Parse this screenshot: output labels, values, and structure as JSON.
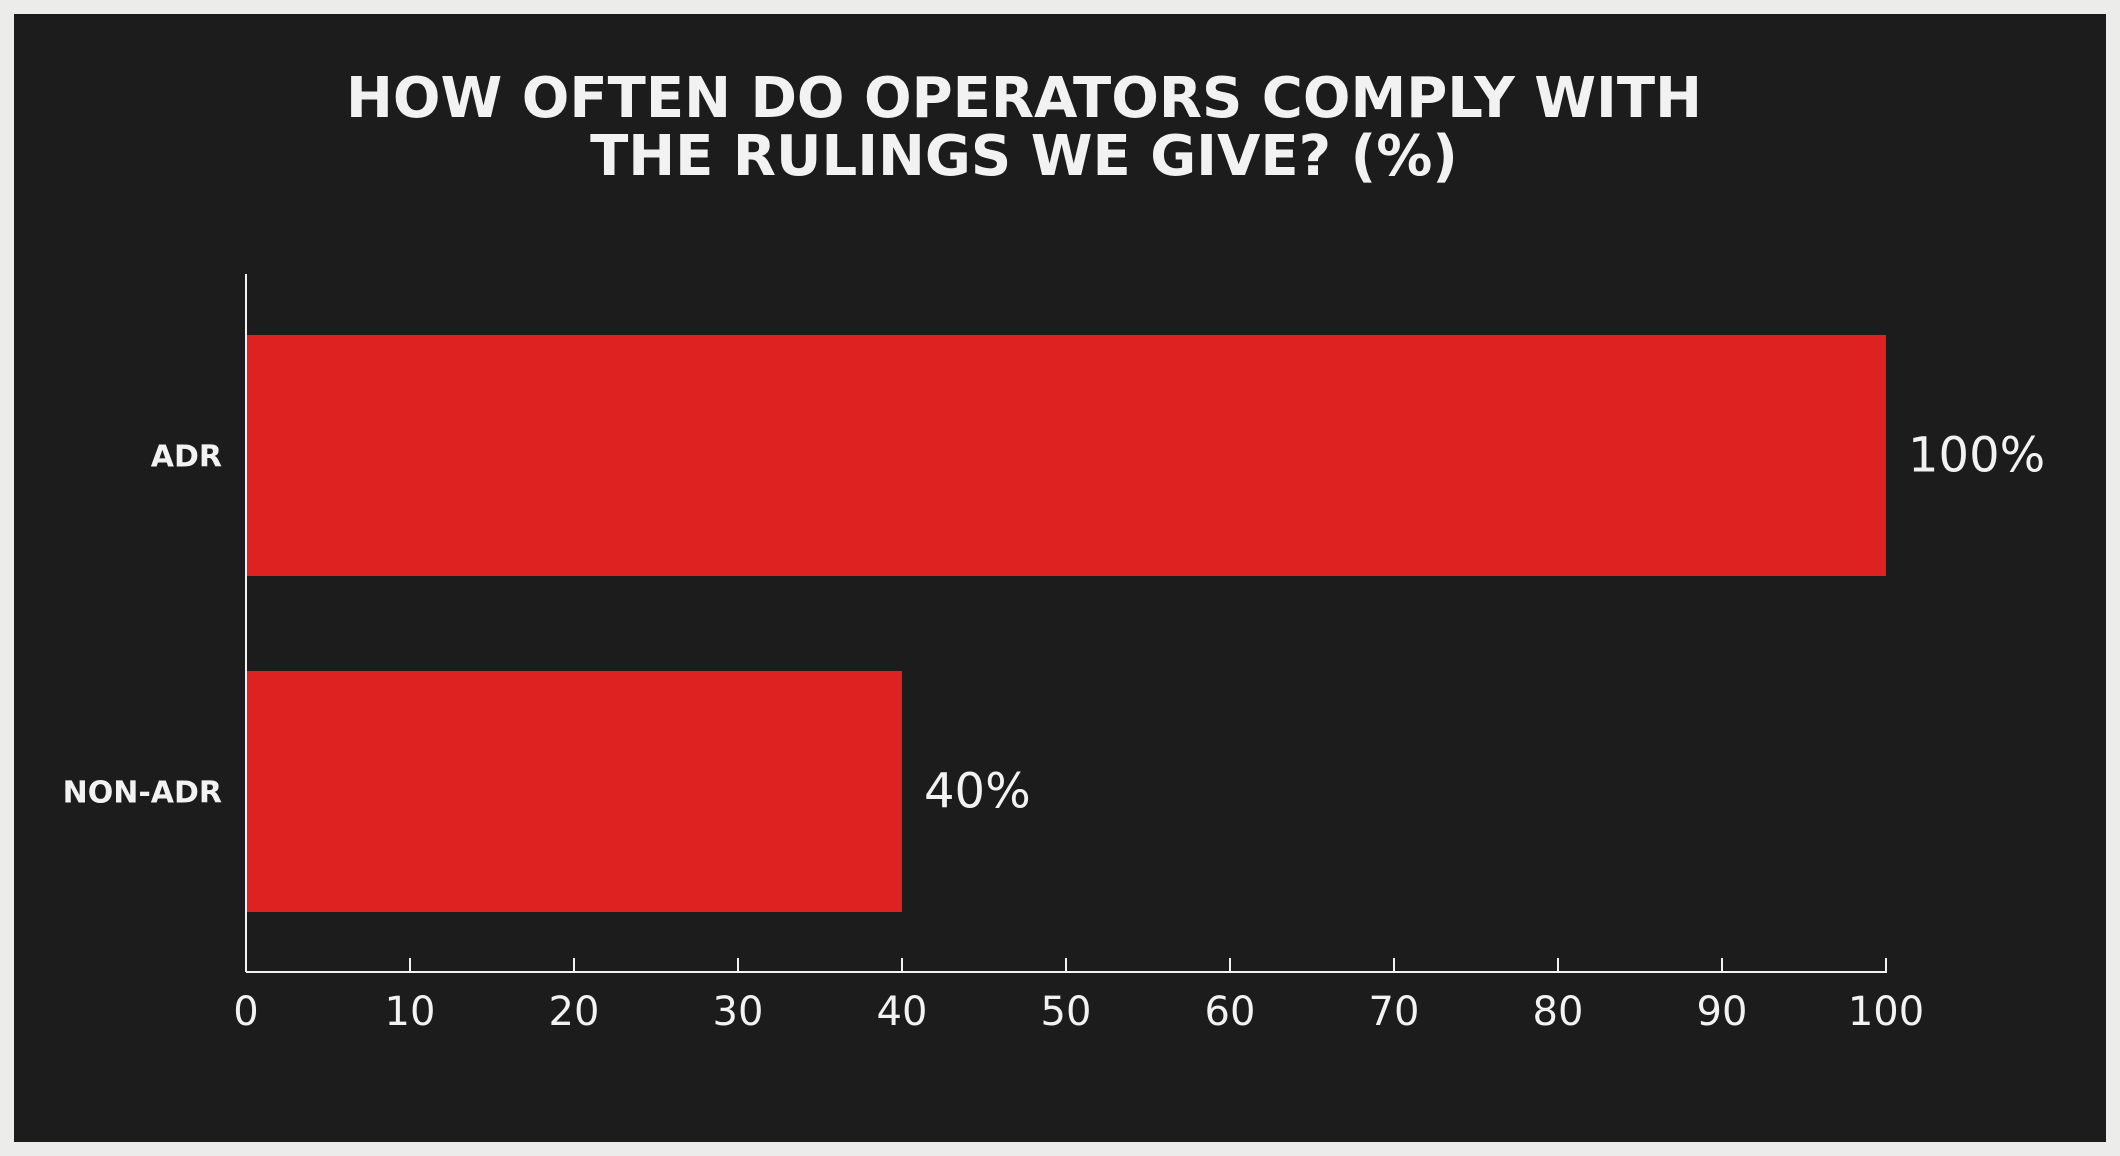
{
  "chart_data": {
    "type": "bar",
    "orientation": "horizontal",
    "title_lines": [
      "HOW OFTEN DO OPERATORS COMPLY WITH",
      "THE RULINGS WE GIVE? (%)"
    ],
    "categories": [
      "ADR",
      "NON-ADR"
    ],
    "values": [
      100,
      40
    ],
    "data_labels": [
      "100%",
      "40%"
    ],
    "xlim": [
      0,
      100
    ],
    "x_ticks": [
      0,
      10,
      20,
      30,
      40,
      50,
      60,
      70,
      80,
      90,
      100
    ],
    "grid": false,
    "legend": "none"
  },
  "colors": {
    "background": "#1c1c1c",
    "border": "#ececea",
    "bar": "#de2222",
    "text": "#f2f2f2",
    "axis": "#f2f2f2"
  }
}
